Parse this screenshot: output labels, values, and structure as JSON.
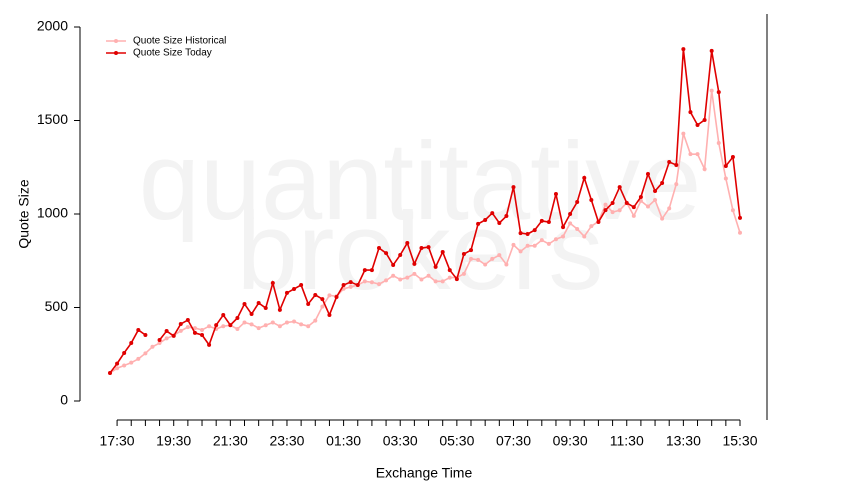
{
  "chart_data": {
    "type": "line",
    "watermark": [
      "quantitative",
      "brokers"
    ],
    "x_label": "Exchange Time",
    "y_label": "Quote Size",
    "categories": [
      "17:15",
      "17:30",
      "17:45",
      "18:00",
      "18:15",
      "18:30",
      "18:45",
      "19:00",
      "19:15",
      "19:30",
      "19:45",
      "20:00",
      "20:15",
      "20:30",
      "20:45",
      "21:00",
      "21:15",
      "21:30",
      "21:45",
      "22:00",
      "22:15",
      "22:30",
      "22:45",
      "23:00",
      "23:15",
      "23:30",
      "23:45",
      "00:00",
      "00:15",
      "00:30",
      "00:45",
      "01:00",
      "01:15",
      "01:30",
      "01:45",
      "02:00",
      "02:15",
      "02:30",
      "02:45",
      "03:00",
      "03:15",
      "03:30",
      "03:45",
      "04:00",
      "04:15",
      "04:30",
      "04:45",
      "05:00",
      "05:15",
      "05:30",
      "05:45",
      "06:00",
      "06:15",
      "06:30",
      "06:45",
      "07:00",
      "07:15",
      "07:30",
      "07:45",
      "08:00",
      "08:15",
      "08:30",
      "08:45",
      "09:00",
      "09:15",
      "09:30",
      "09:45",
      "10:00",
      "10:15",
      "10:30",
      "10:45",
      "11:00",
      "11:15",
      "11:30",
      "11:45",
      "12:00",
      "12:15",
      "12:30",
      "12:45",
      "13:00",
      "13:15",
      "13:30",
      "13:45",
      "14:00",
      "14:15",
      "14:30",
      "14:45",
      "15:00",
      "15:15",
      "15:30"
    ],
    "series": [
      {
        "name": "Quote Size Historical",
        "color": "#ffb0b0",
        "values": [
          150,
          175,
          190,
          205,
          225,
          255,
          290,
          310,
          335,
          350,
          375,
          395,
          390,
          380,
          400,
          385,
          400,
          405,
          385,
          420,
          410,
          390,
          405,
          420,
          400,
          420,
          425,
          410,
          400,
          430,
          505,
          565,
          560,
          600,
          610,
          620,
          640,
          635,
          625,
          645,
          670,
          650,
          660,
          680,
          650,
          670,
          640,
          640,
          660,
          660,
          680,
          760,
          755,
          730,
          760,
          780,
          730,
          835,
          800,
          830,
          830,
          860,
          840,
          865,
          880,
          950,
          920,
          880,
          935,
          960,
          1050,
          1010,
          1020,
          1060,
          990,
          1070,
          1040,
          1075,
          975,
          1030,
          1160,
          1430,
          1320,
          1320,
          1240,
          1660,
          1380,
          1190,
          1020,
          900
        ]
      },
      {
        "name": "Quote Size Today",
        "color": "#e00000",
        "values": [
          150,
          200,
          257,
          310,
          380,
          353,
          null,
          326,
          374,
          348,
          412,
          433,
          364,
          353,
          300,
          406,
          460,
          406,
          444,
          519,
          465,
          524,
          497,
          631,
          487,
          578,
          599,
          620,
          519,
          567,
          545,
          460,
          556,
          620,
          636,
          620,
          700,
          700,
          818,
          791,
          727,
          781,
          845,
          733,
          818,
          823,
          717,
          797,
          700,
          652,
          786,
          807,
          947,
          968,
          1005,
          952,
          989,
          1144,
          898,
          893,
          914,
          963,
          957,
          1107,
          930,
          1000,
          1064,
          1193,
          1075,
          957,
          1021,
          1059,
          1144,
          1059,
          1037,
          1091,
          1214,
          1123,
          1166,
          1278,
          1262,
          1882,
          1545,
          1476,
          1503,
          1872,
          1652,
          1257,
          1305,
          979
        ]
      }
    ],
    "ylim": [
      0,
      2000
    ],
    "yticks": [
      0,
      500,
      1000,
      1500,
      2000
    ],
    "xticks": [
      "17:30",
      "19:30",
      "21:30",
      "23:30",
      "01:30",
      "03:30",
      "05:30",
      "07:30",
      "09:30",
      "11:30",
      "13:30",
      "15:30"
    ],
    "legend": "top-left"
  }
}
